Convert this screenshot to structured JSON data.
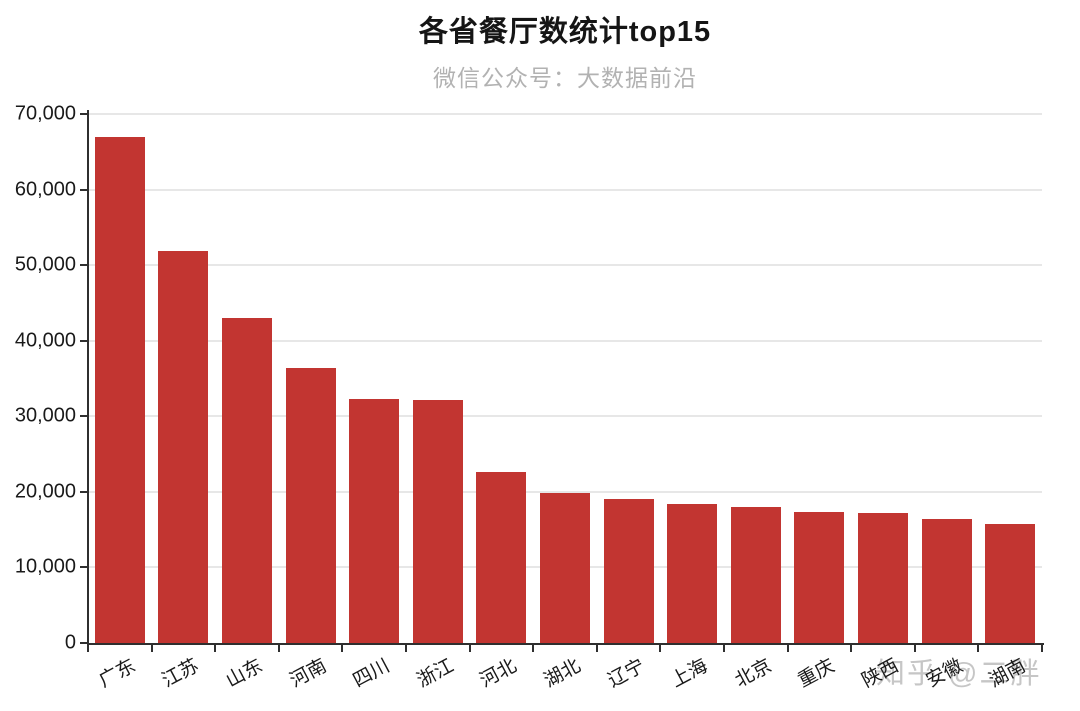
{
  "watermark": {
    "text": "知乎 @二胖"
  },
  "colors": {
    "bar": "#c23531",
    "axis": "#2f2f2f",
    "grid": "#e7e7e7",
    "title": "#151515",
    "subtitle": "#b2b2b2",
    "watermark": "#c6c6c6"
  },
  "chart_data": {
    "type": "bar",
    "title": "各省餐厅数统计top15",
    "subtitle": "微信公众号：大数据前沿",
    "categories": [
      "广东",
      "江苏",
      "山东",
      "河南",
      "四川",
      "浙江",
      "河北",
      "湖北",
      "辽宁",
      "上海",
      "北京",
      "重庆",
      "陕西",
      "安徽",
      "湖南"
    ],
    "values": [
      66900,
      51900,
      43000,
      36400,
      32300,
      32200,
      22600,
      19900,
      19000,
      18400,
      18000,
      17300,
      17200,
      16400,
      15800
    ],
    "xlabel": "",
    "ylabel": "",
    "ylim": [
      0,
      70000
    ],
    "yticks": [
      0,
      10000,
      20000,
      30000,
      40000,
      50000,
      60000,
      70000
    ],
    "ytick_labels": [
      "0",
      "10,000",
      "20,000",
      "30,000",
      "40,000",
      "50,000",
      "60,000",
      "70,000"
    ],
    "grid": true,
    "legend": "none",
    "bar_color": "#c23531"
  }
}
